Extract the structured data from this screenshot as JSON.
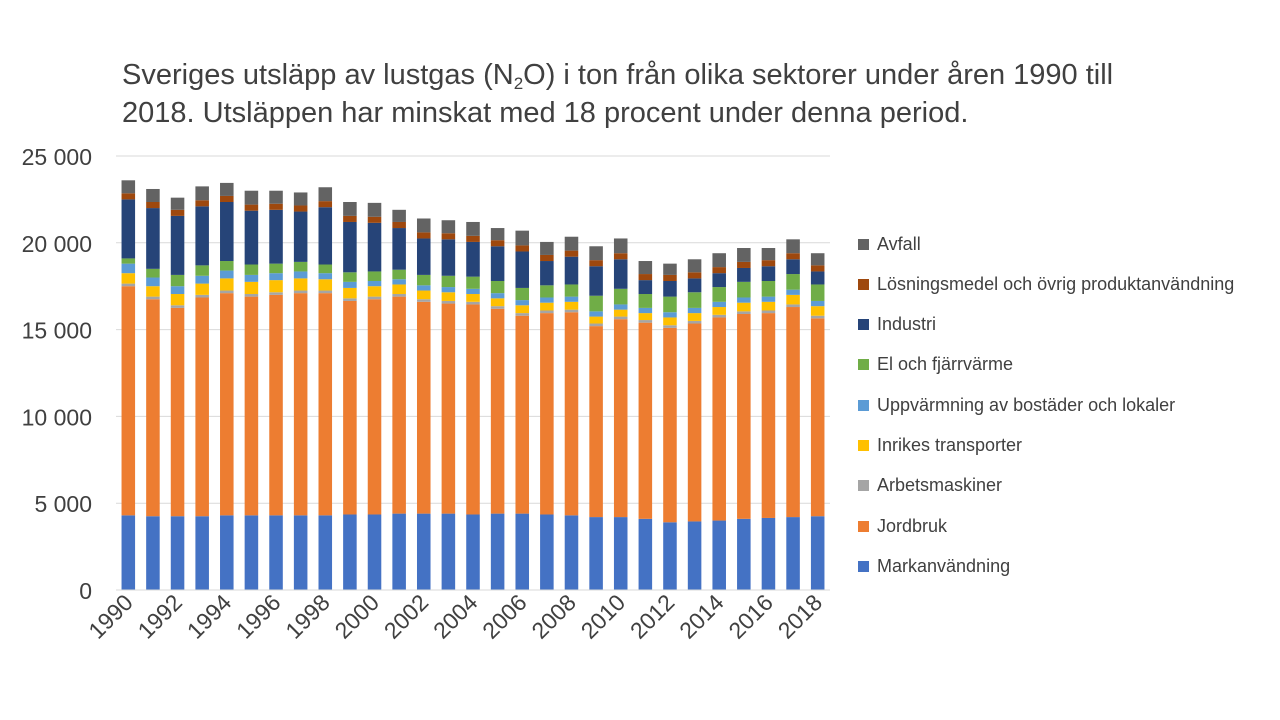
{
  "chart_data": {
    "type": "bar",
    "stacked": true,
    "title": {
      "part1": "Sveriges utsläpp av lustgas (N",
      "sub": "2",
      "part2": "O) i ton från olika sektorer under åren 1990 till 2018. Utsläppen har minskat med 18 procent under denna period."
    },
    "ylim": [
      0,
      25000
    ],
    "y_ticks": [
      {
        "value": 0,
        "label": "0"
      },
      {
        "value": 5000,
        "label": "5 000"
      },
      {
        "value": 10000,
        "label": "10 000"
      },
      {
        "value": 15000,
        "label": "15 000"
      },
      {
        "value": 20000,
        "label": "20 000"
      },
      {
        "value": 25000,
        "label": "25 000"
      }
    ],
    "grid": true,
    "legend_position": "right",
    "categories": [
      "1990",
      "1991",
      "1992",
      "1993",
      "1994",
      "1995",
      "1996",
      "1997",
      "1998",
      "1999",
      "2000",
      "2001",
      "2002",
      "2003",
      "2004",
      "2005",
      "2006",
      "2007",
      "2008",
      "2009",
      "2010",
      "2011",
      "2012",
      "2013",
      "2014",
      "2015",
      "2016",
      "2017",
      "2018"
    ],
    "x_tick_labels": [
      "1990",
      "",
      "1992",
      "",
      "1994",
      "",
      "1996",
      "",
      "1998",
      "",
      "2000",
      "",
      "2002",
      "",
      "2004",
      "",
      "2006",
      "",
      "2008",
      "",
      "2010",
      "",
      "2012",
      "",
      "2014",
      "",
      "2016",
      "",
      "2018"
    ],
    "series": [
      {
        "name": "Markanvändning",
        "color": "#4472C4",
        "values": [
          4300,
          4250,
          4250,
          4250,
          4300,
          4300,
          4300,
          4300,
          4300,
          4350,
          4350,
          4400,
          4400,
          4400,
          4350,
          4400,
          4400,
          4350,
          4300,
          4200,
          4200,
          4100,
          3900,
          3950,
          4000,
          4100,
          4150,
          4200,
          4250
        ]
      },
      {
        "name": "Jordbruk",
        "color": "#ED7D31",
        "values": [
          13200,
          12500,
          12000,
          12600,
          12800,
          12600,
          12700,
          12800,
          12800,
          12300,
          12400,
          12500,
          12200,
          12100,
          12100,
          11800,
          11400,
          11600,
          11700,
          11000,
          11400,
          11300,
          11200,
          11400,
          11700,
          11800,
          11800,
          12100,
          11400
        ]
      },
      {
        "name": "Arbetsmaskiner",
        "color": "#A5A5A5",
        "values": [
          150,
          150,
          150,
          150,
          150,
          150,
          150,
          150,
          150,
          150,
          150,
          150,
          150,
          150,
          150,
          150,
          150,
          150,
          150,
          150,
          150,
          150,
          150,
          150,
          150,
          150,
          150,
          150,
          150
        ]
      },
      {
        "name": "Inrikes transporter",
        "color": "#FFC000",
        "values": [
          600,
          600,
          650,
          650,
          700,
          700,
          700,
          700,
          650,
          600,
          600,
          550,
          500,
          500,
          450,
          450,
          450,
          450,
          450,
          400,
          400,
          400,
          450,
          450,
          450,
          500,
          500,
          550,
          550
        ]
      },
      {
        "name": "Uppvärmning av bostäder och lokaler",
        "color": "#5B9BD5",
        "values": [
          550,
          500,
          450,
          450,
          450,
          400,
          400,
          400,
          350,
          350,
          300,
          300,
          300,
          300,
          300,
          300,
          300,
          300,
          300,
          300,
          300,
          300,
          300,
          300,
          300,
          300,
          300,
          300,
          300
        ]
      },
      {
        "name": "El och fjärrvärme",
        "color": "#70AD47",
        "values": [
          300,
          500,
          650,
          600,
          550,
          600,
          550,
          550,
          500,
          550,
          550,
          550,
          600,
          650,
          700,
          700,
          700,
          700,
          700,
          900,
          900,
          800,
          900,
          900,
          850,
          900,
          900,
          900,
          950
        ]
      },
      {
        "name": "Industri",
        "color": "#264478",
        "values": [
          3400,
          3500,
          3400,
          3400,
          3400,
          3100,
          3100,
          2900,
          3300,
          2900,
          2800,
          2400,
          2100,
          2100,
          2000,
          2000,
          2100,
          1400,
          1600,
          1700,
          1700,
          800,
          900,
          800,
          800,
          800,
          850,
          850,
          750
        ]
      },
      {
        "name": "Lösningsmedel och övrig produktanvändning",
        "color": "#9E480E",
        "values": [
          350,
          350,
          350,
          350,
          350,
          350,
          350,
          350,
          350,
          350,
          350,
          350,
          350,
          350,
          350,
          350,
          350,
          350,
          350,
          350,
          350,
          350,
          350,
          350,
          350,
          350,
          350,
          350,
          350
        ]
      },
      {
        "name": "Avfall",
        "color": "#636363",
        "values": [
          750,
          750,
          700,
          800,
          750,
          800,
          750,
          750,
          800,
          800,
          800,
          700,
          800,
          750,
          800,
          700,
          850,
          750,
          800,
          800,
          850,
          750,
          650,
          750,
          800,
          800,
          700,
          800,
          700
        ]
      }
    ]
  }
}
